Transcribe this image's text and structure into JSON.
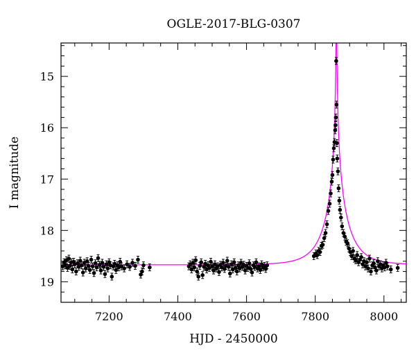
{
  "chart_data": {
    "type": "scatter",
    "title": "OGLE-2017-BLG-0307",
    "xlabel": "HJD - 2450000",
    "ylabel": "I magnitude",
    "xlim": [
      7060,
      8065
    ],
    "ylim": [
      19.4,
      14.35
    ],
    "y_inverted": true,
    "x_ticks": [
      7200,
      7400,
      7600,
      7800,
      8000
    ],
    "y_ticks": [
      15,
      16,
      17,
      18,
      19
    ],
    "grid": false,
    "series": [
      {
        "kind": "points",
        "color": "#000000",
        "points": [
          [
            7065,
            18.7
          ],
          [
            7069,
            18.62
          ],
          [
            7072,
            18.68
          ],
          [
            7076,
            18.58
          ],
          [
            7079,
            18.73
          ],
          [
            7083,
            18.55
          ],
          [
            7086,
            18.69
          ],
          [
            7090,
            18.62
          ],
          [
            7093,
            18.76
          ],
          [
            7097,
            18.61
          ],
          [
            7100,
            18.66
          ],
          [
            7104,
            18.8
          ],
          [
            7108,
            18.64
          ],
          [
            7112,
            18.71
          ],
          [
            7116,
            18.59
          ],
          [
            7120,
            18.68
          ],
          [
            7124,
            18.82
          ],
          [
            7128,
            18.63
          ],
          [
            7132,
            18.74
          ],
          [
            7136,
            18.6
          ],
          [
            7140,
            18.69
          ],
          [
            7144,
            18.77
          ],
          [
            7148,
            18.57
          ],
          [
            7152,
            18.7
          ],
          [
            7156,
            18.83
          ],
          [
            7160,
            18.64
          ],
          [
            7164,
            18.72
          ],
          [
            7168,
            18.54
          ],
          [
            7172,
            18.67
          ],
          [
            7176,
            18.78
          ],
          [
            7180,
            18.63
          ],
          [
            7184,
            18.71
          ],
          [
            7188,
            18.85
          ],
          [
            7192,
            18.66
          ],
          [
            7196,
            18.74
          ],
          [
            7200,
            18.62
          ],
          [
            7204,
            18.68
          ],
          [
            7208,
            18.9
          ],
          [
            7212,
            18.7
          ],
          [
            7216,
            18.65
          ],
          [
            7220,
            18.77
          ],
          [
            7224,
            18.68
          ],
          [
            7228,
            18.72
          ],
          [
            7232,
            18.61
          ],
          [
            7236,
            18.7
          ],
          [
            7244,
            18.74
          ],
          [
            7252,
            18.66
          ],
          [
            7260,
            18.71
          ],
          [
            7268,
            18.63
          ],
          [
            7276,
            18.69
          ],
          [
            7284,
            18.57
          ],
          [
            7292,
            18.86
          ],
          [
            7296,
            18.8
          ],
          [
            7300,
            18.68
          ],
          [
            7318,
            18.72
          ],
          [
            7432,
            18.7
          ],
          [
            7436,
            18.66
          ],
          [
            7440,
            18.76
          ],
          [
            7444,
            18.63
          ],
          [
            7448,
            18.72
          ],
          [
            7452,
            18.58
          ],
          [
            7456,
            18.8
          ],
          [
            7460,
            18.9
          ],
          [
            7464,
            18.69
          ],
          [
            7468,
            18.62
          ],
          [
            7472,
            18.87
          ],
          [
            7476,
            18.71
          ],
          [
            7480,
            18.65
          ],
          [
            7484,
            18.76
          ],
          [
            7488,
            18.68
          ],
          [
            7492,
            18.73
          ],
          [
            7496,
            18.61
          ],
          [
            7500,
            18.7
          ],
          [
            7504,
            18.78
          ],
          [
            7508,
            18.66
          ],
          [
            7512,
            18.74
          ],
          [
            7516,
            18.7
          ],
          [
            7520,
            18.81
          ],
          [
            7524,
            18.67
          ],
          [
            7528,
            18.72
          ],
          [
            7532,
            18.63
          ],
          [
            7536,
            18.75
          ],
          [
            7540,
            18.69
          ],
          [
            7544,
            18.59
          ],
          [
            7548,
            18.71
          ],
          [
            7552,
            18.84
          ],
          [
            7556,
            18.66
          ],
          [
            7560,
            18.76
          ],
          [
            7564,
            18.62
          ],
          [
            7568,
            18.73
          ],
          [
            7572,
            18.8
          ],
          [
            7576,
            18.68
          ],
          [
            7580,
            18.74
          ],
          [
            7584,
            18.63
          ],
          [
            7588,
            18.71
          ],
          [
            7592,
            18.67
          ],
          [
            7596,
            18.78
          ],
          [
            7600,
            18.69
          ],
          [
            7604,
            18.73
          ],
          [
            7608,
            18.64
          ],
          [
            7612,
            18.75
          ],
          [
            7616,
            18.82
          ],
          [
            7620,
            18.68
          ],
          [
            7624,
            18.71
          ],
          [
            7628,
            18.62
          ],
          [
            7632,
            18.74
          ],
          [
            7636,
            18.7
          ],
          [
            7640,
            18.77
          ],
          [
            7644,
            18.66
          ],
          [
            7648,
            18.72
          ],
          [
            7652,
            18.69
          ],
          [
            7656,
            18.75
          ],
          [
            7660,
            18.68
          ],
          [
            7796,
            18.5
          ],
          [
            7802,
            18.45
          ],
          [
            7806,
            18.48
          ],
          [
            7810,
            18.4
          ],
          [
            7814,
            18.42
          ],
          [
            7818,
            18.3
          ],
          [
            7822,
            18.28
          ],
          [
            7826,
            18.15
          ],
          [
            7830,
            18.05
          ],
          [
            7834,
            17.88
          ],
          [
            7838,
            17.62
          ],
          [
            7842,
            17.48
          ],
          [
            7845,
            17.28
          ],
          [
            7848,
            17.05
          ],
          [
            7850,
            16.92
          ],
          [
            7852,
            16.62
          ],
          [
            7854,
            16.4
          ],
          [
            7856,
            16.28
          ],
          [
            7858,
            16.05
          ],
          [
            7859,
            15.95
          ],
          [
            7860,
            15.8
          ],
          [
            7861,
            14.7
          ],
          [
            7862,
            15.55
          ],
          [
            7863,
            16.3
          ],
          [
            7864,
            16.6
          ],
          [
            7866,
            16.85
          ],
          [
            7868,
            17.18
          ],
          [
            7870,
            17.42
          ],
          [
            7872,
            17.6
          ],
          [
            7875,
            17.75
          ],
          [
            7878,
            17.92
          ],
          [
            7882,
            18.05
          ],
          [
            7886,
            18.12
          ],
          [
            7890,
            18.22
          ],
          [
            7894,
            18.25
          ],
          [
            7898,
            18.35
          ],
          [
            7902,
            18.42
          ],
          [
            7906,
            18.5
          ],
          [
            7910,
            18.4
          ],
          [
            7914,
            18.55
          ],
          [
            7918,
            18.58
          ],
          [
            7922,
            18.48
          ],
          [
            7926,
            18.62
          ],
          [
            7930,
            18.57
          ],
          [
            7934,
            18.52
          ],
          [
            7938,
            18.66
          ],
          [
            7942,
            18.6
          ],
          [
            7946,
            18.7
          ],
          [
            7950,
            18.62
          ],
          [
            7954,
            18.74
          ],
          [
            7958,
            18.55
          ],
          [
            7962,
            18.8
          ],
          [
            7966,
            18.68
          ],
          [
            7970,
            18.64
          ],
          [
            7974,
            18.72
          ],
          [
            7978,
            18.78
          ],
          [
            7982,
            18.6
          ],
          [
            7986,
            18.7
          ],
          [
            7990,
            18.66
          ],
          [
            7994,
            18.74
          ],
          [
            7998,
            18.68
          ],
          [
            8002,
            18.72
          ],
          [
            8006,
            18.63
          ],
          [
            8010,
            18.7
          ],
          [
            8020,
            18.76
          ],
          [
            8040,
            18.73
          ]
        ]
      },
      {
        "kind": "model",
        "color": "#ff00ff",
        "model": "pspl",
        "baseline_mag": 18.67,
        "t0": 7861.5,
        "u0": 0.0038,
        "tE": 68
      }
    ]
  }
}
